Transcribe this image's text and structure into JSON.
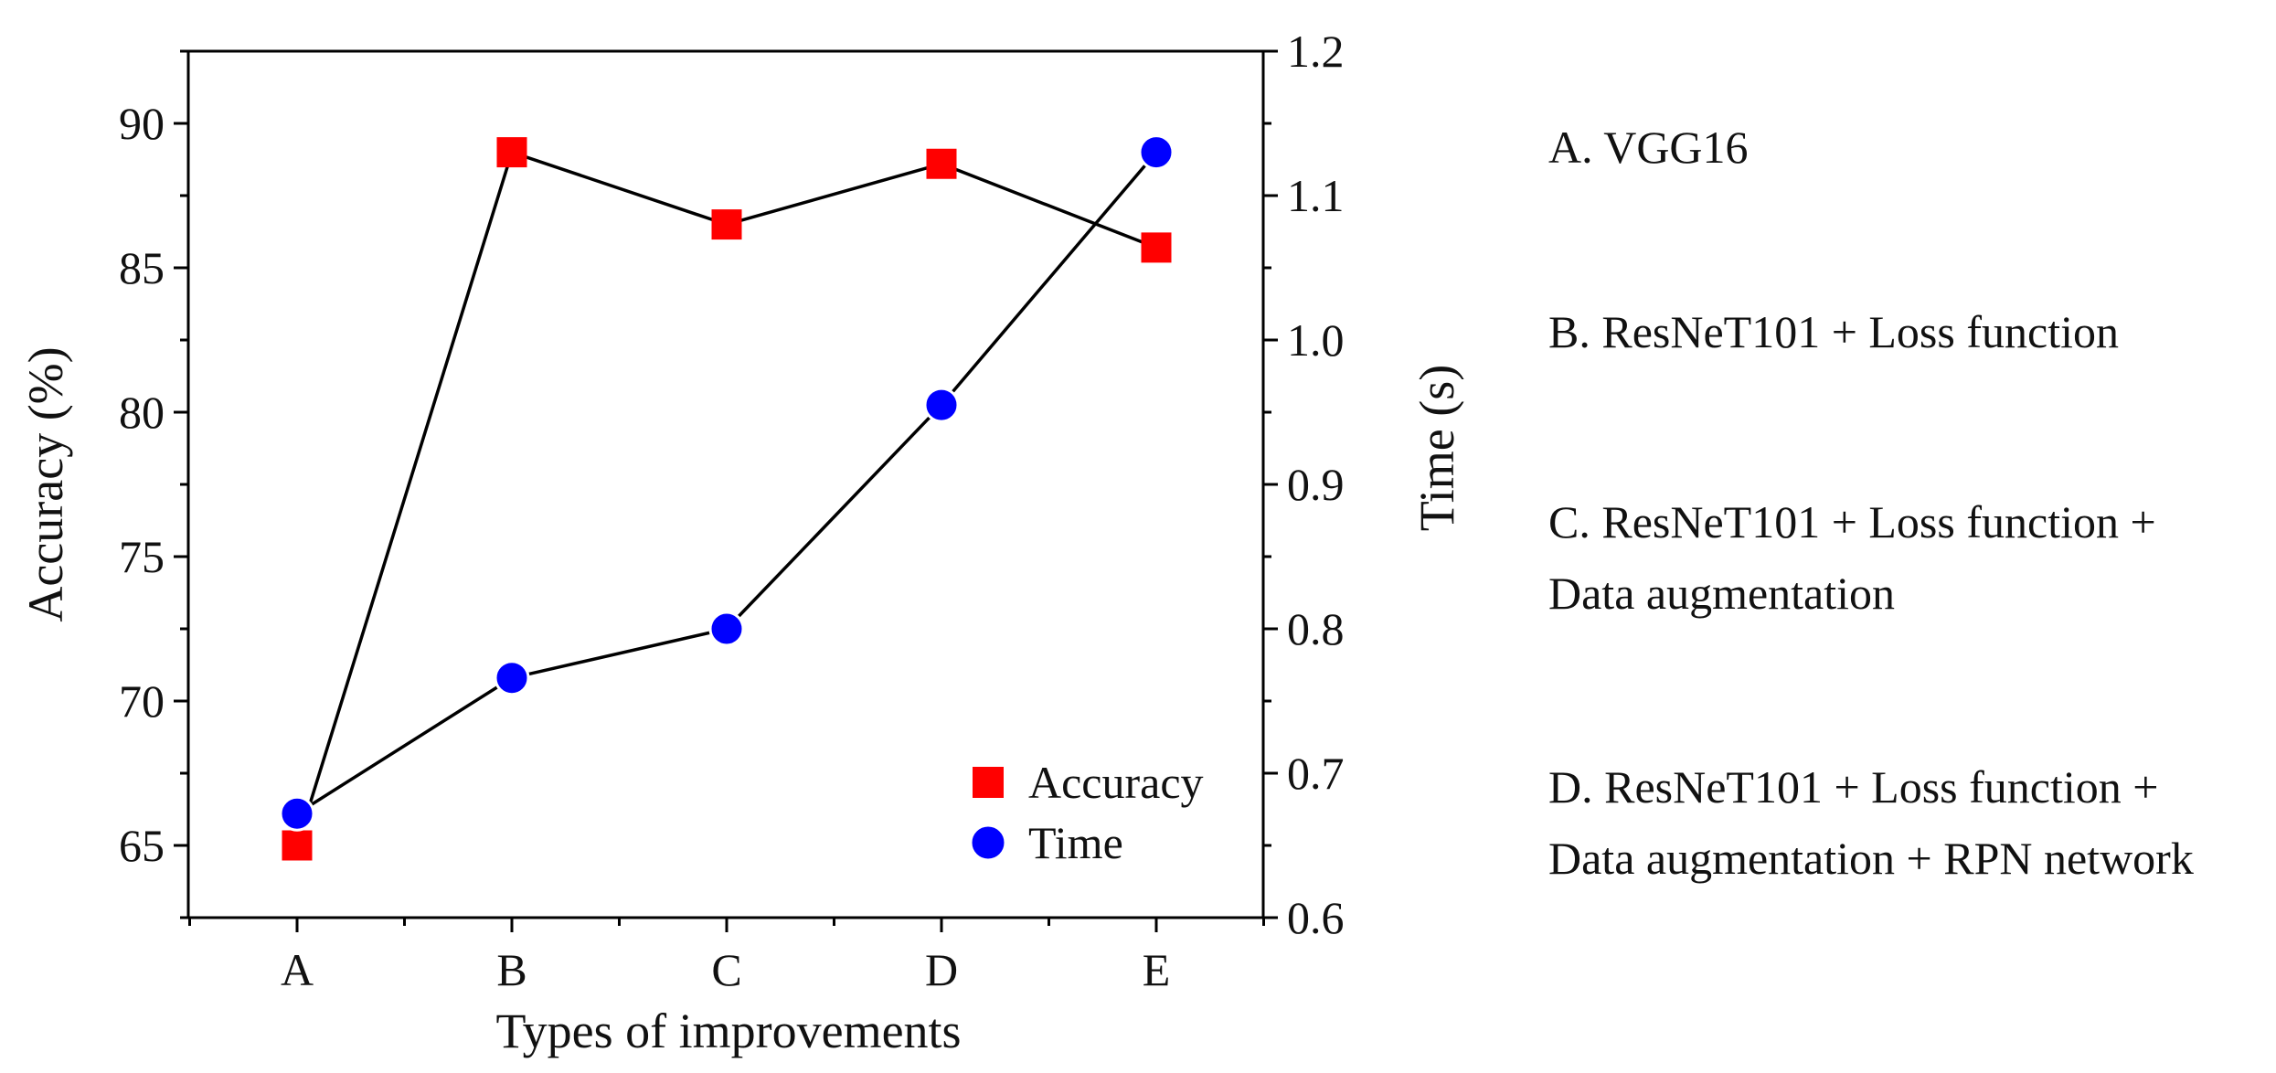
{
  "colors": {
    "accuracy": "#ff0000",
    "time": "#0000ff",
    "line": "#000000",
    "axis": "#000000"
  },
  "chart_data": {
    "type": "line",
    "title": "",
    "categories": [
      "A",
      "B",
      "C",
      "D",
      "E"
    ],
    "xlabel": "Types of improvements",
    "ylabel_left": "Accuracy (%)",
    "ylabel_right": "Time (s)",
    "ylim_left": [
      62.5,
      92.5
    ],
    "ylim_right": [
      0.6,
      1.2
    ],
    "yticks_left": [
      "65",
      "70",
      "75",
      "80",
      "85",
      "90"
    ],
    "yticks_right": [
      "0.6",
      "0.7",
      "0.8",
      "0.9",
      "1.0",
      "1.1",
      "1.2"
    ],
    "grid": false,
    "legend_position": "bottom-right",
    "series": [
      {
        "name": "Accuracy",
        "axis": "left",
        "marker": "square",
        "values": [
          65.0,
          89.0,
          86.5,
          88.6,
          85.7
        ]
      },
      {
        "name": "Time",
        "axis": "right",
        "marker": "circle",
        "values": [
          0.672,
          0.766,
          0.8,
          0.955,
          1.13
        ]
      }
    ]
  },
  "notes": [
    [
      "A. VGG16"
    ],
    [
      "B. ResNeT101 + Loss function"
    ],
    [
      "C. ResNeT101 + Loss function +",
      "Data augmentation"
    ],
    [
      "D. ResNeT101 + Loss function +",
      "Data augmentation + RPN network"
    ]
  ]
}
